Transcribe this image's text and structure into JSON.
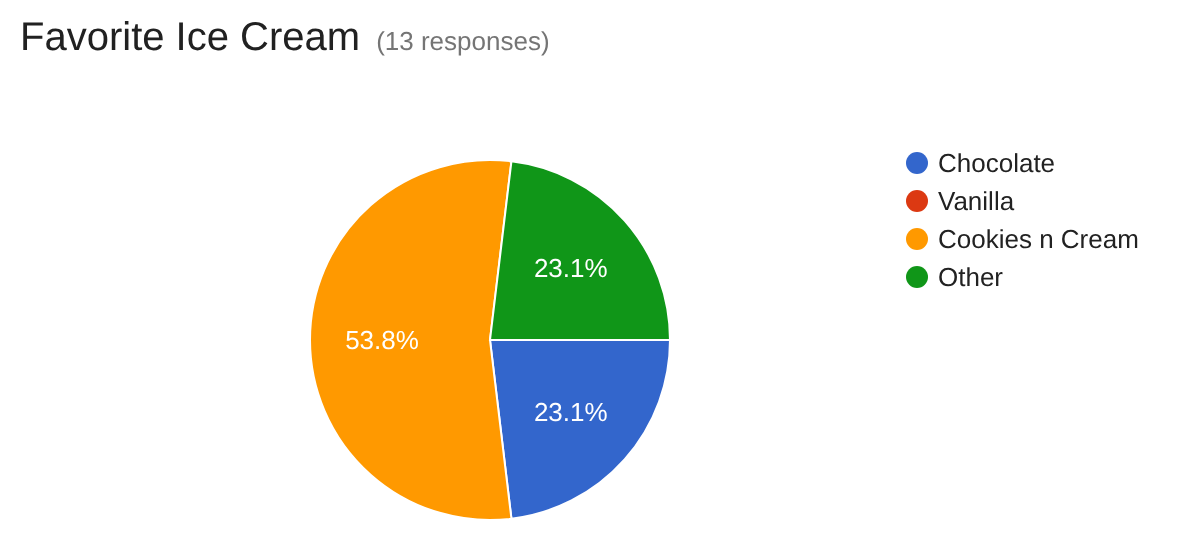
{
  "chart_data": {
    "type": "pie",
    "title": "Favorite Ice Cream",
    "subtitle": "(13 responses)",
    "categories": [
      "Chocolate",
      "Vanilla",
      "Cookies n Cream",
      "Other"
    ],
    "values": [
      23.1,
      0,
      53.8,
      23.1
    ],
    "colors": [
      "#3366cc",
      "#dc3912",
      "#ff9900",
      "#109618"
    ],
    "value_labels": [
      "23.1%",
      null,
      "53.8%",
      "23.1%"
    ],
    "legend": "right"
  }
}
